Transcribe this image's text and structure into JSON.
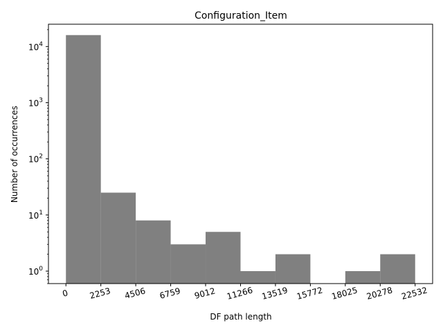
{
  "chart_data": {
    "type": "bar",
    "title": "Configuration_Item",
    "xlabel": "DF path length",
    "ylabel": "Number of occurrences",
    "yscale": "log",
    "ylim": [
      0.6,
      25000
    ],
    "xlim": [
      -1127,
      23659
    ],
    "bin_edges": [
      0,
      2253,
      4506,
      6759,
      9012,
      11266,
      13519,
      15772,
      18025,
      20278,
      22532
    ],
    "x_tick_labels": [
      "0",
      "2253",
      "4506",
      "6759",
      "9012",
      "11266",
      "13519",
      "15772",
      "18025",
      "20278",
      "22532"
    ],
    "y_ticks": [
      1,
      10,
      100,
      1000,
      10000
    ],
    "y_tick_labels": [
      {
        "base": "10",
        "exp": "0"
      },
      {
        "base": "10",
        "exp": "1"
      },
      {
        "base": "10",
        "exp": "2"
      },
      {
        "base": "10",
        "exp": "3"
      },
      {
        "base": "10",
        "exp": "4"
      }
    ],
    "values": [
      16000,
      25,
      8,
      3,
      5,
      1,
      2,
      0,
      1,
      2
    ],
    "bar_color": "#808080",
    "grid": false
  }
}
